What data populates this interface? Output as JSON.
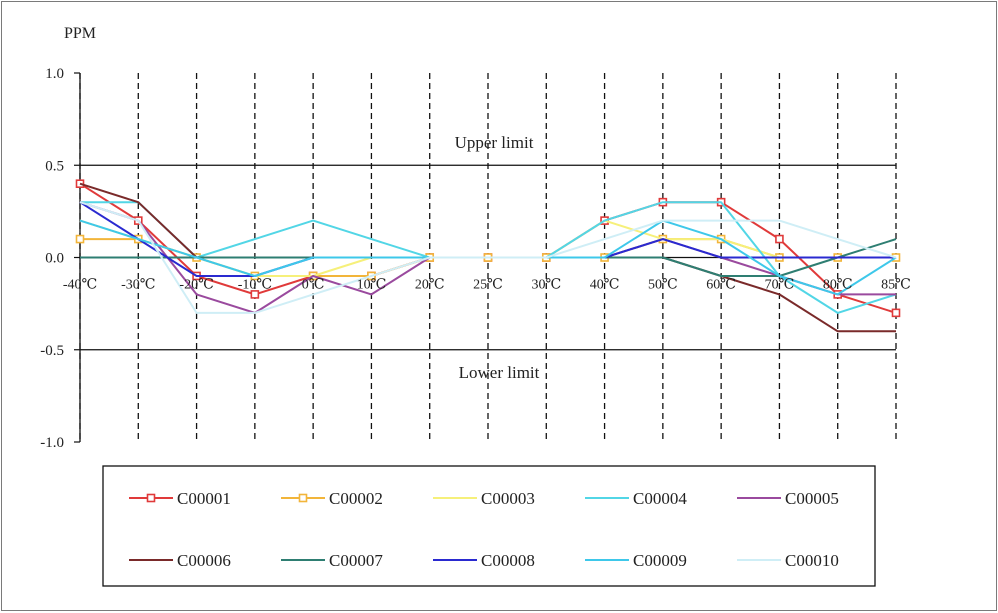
{
  "chart_data": {
    "type": "line",
    "ylabel": "PPM",
    "ylim": [
      -1.0,
      1.0
    ],
    "yticks": [
      1.0,
      0.5,
      0.0,
      -0.5,
      -1.0
    ],
    "ytick_labels": [
      "1.0",
      "0.5",
      "0.0",
      "-0.5",
      "-1.0"
    ],
    "categories": [
      "-40℃",
      "-30℃",
      "-20℃",
      "-10℃",
      "0℃",
      "10℃",
      "20℃",
      "25℃",
      "30℃",
      "40℃",
      "50℃",
      "60℃",
      "70℃",
      "80℃",
      "85℃"
    ],
    "upper_limit": {
      "value": 0.5,
      "label": "Upper limit"
    },
    "lower_limit": {
      "value": -0.5,
      "label": "Lower limit"
    },
    "grid": "vertical dashed",
    "legend_position": "bottom",
    "series": [
      {
        "name": "C00001",
        "color": "#e03a3a",
        "marker": "square",
        "values": [
          0.4,
          0.2,
          -0.1,
          -0.2,
          -0.1,
          -0.1,
          0.0,
          0.0,
          0.0,
          0.2,
          0.3,
          0.3,
          0.1,
          -0.2,
          -0.3
        ]
      },
      {
        "name": "C00002",
        "color": "#f2b53a",
        "marker": "square",
        "values": [
          0.1,
          0.1,
          0.0,
          -0.1,
          -0.1,
          -0.1,
          0.0,
          0.0,
          0.0,
          0.0,
          0.1,
          0.1,
          0.0,
          0.0,
          0.0
        ]
      },
      {
        "name": "C00003",
        "color": "#f6f07a",
        "marker": "none",
        "values": [
          0.2,
          0.1,
          0.0,
          -0.1,
          -0.1,
          0.0,
          0.0,
          0.0,
          0.0,
          0.2,
          0.1,
          0.1,
          0.0,
          0.0,
          0.0
        ]
      },
      {
        "name": "C00004",
        "color": "#52d6e6",
        "marker": "none",
        "values": [
          0.3,
          0.3,
          0.0,
          0.1,
          0.2,
          0.1,
          0.0,
          0.0,
          0.0,
          0.2,
          0.3,
          0.3,
          -0.1,
          -0.3,
          -0.2
        ]
      },
      {
        "name": "C00005",
        "color": "#9a4a9e",
        "marker": "none",
        "values": [
          0.3,
          0.2,
          -0.2,
          -0.3,
          -0.1,
          -0.2,
          0.0,
          0.0,
          0.0,
          0.0,
          0.1,
          0.0,
          -0.1,
          -0.2,
          -0.2
        ]
      },
      {
        "name": "C00006",
        "color": "#7a2a2a",
        "marker": "none",
        "values": [
          0.4,
          0.3,
          0.0,
          0.0,
          0.0,
          0.0,
          0.0,
          0.0,
          0.0,
          0.0,
          0.0,
          -0.1,
          -0.2,
          -0.4,
          -0.4
        ]
      },
      {
        "name": "C00007",
        "color": "#2e7e72",
        "marker": "none",
        "values": [
          0.0,
          0.0,
          0.0,
          0.0,
          0.0,
          0.0,
          0.0,
          0.0,
          0.0,
          0.0,
          0.0,
          -0.1,
          -0.1,
          0.0,
          0.1
        ]
      },
      {
        "name": "C00008",
        "color": "#2a2ad0",
        "marker": "none",
        "values": [
          0.3,
          0.1,
          -0.1,
          -0.1,
          0.0,
          0.0,
          0.0,
          0.0,
          0.0,
          0.0,
          0.1,
          0.0,
          0.0,
          0.0,
          0.0
        ]
      },
      {
        "name": "C00009",
        "color": "#3ec8ea",
        "marker": "none",
        "values": [
          0.2,
          0.1,
          0.0,
          -0.1,
          0.0,
          0.0,
          0.0,
          0.0,
          0.0,
          0.0,
          0.2,
          0.1,
          -0.1,
          -0.2,
          0.0
        ]
      },
      {
        "name": "C00010",
        "color": "#cfeef6",
        "marker": "none",
        "values": [
          0.3,
          0.2,
          -0.3,
          -0.3,
          -0.2,
          -0.1,
          0.0,
          0.0,
          0.0,
          0.1,
          0.2,
          0.2,
          0.2,
          0.1,
          0.0
        ]
      }
    ]
  }
}
